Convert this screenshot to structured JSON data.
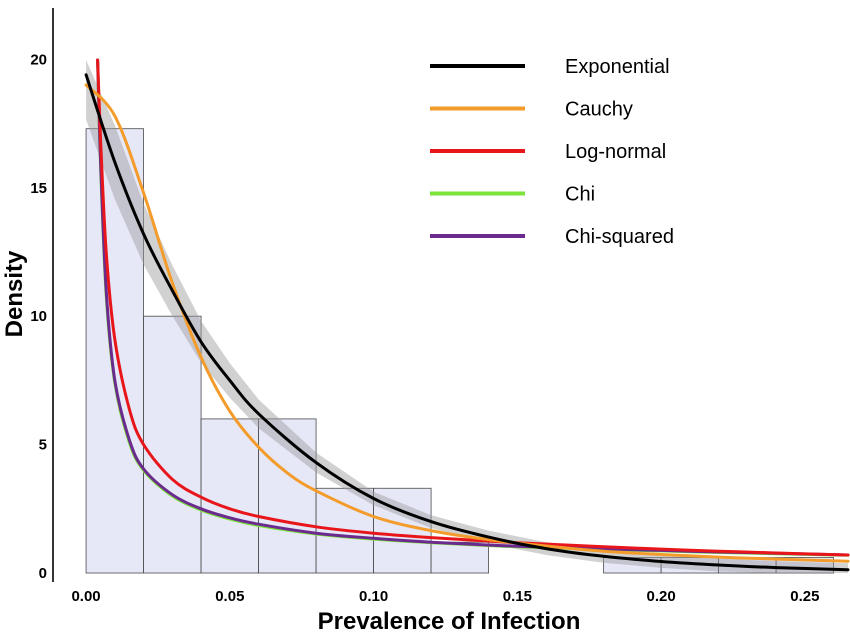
{
  "chart_data": {
    "type": "bar",
    "xlabel": "Prevalence of Infection",
    "ylabel": "Density",
    "xlim": [
      -0.0115,
      0.265
    ],
    "ylim": [
      -0.35,
      22.0
    ],
    "xticks": [
      0.0,
      0.05,
      0.1,
      0.15,
      0.2,
      0.25
    ],
    "xtick_labels": [
      "0.00",
      "0.05",
      "0.10",
      "0.15",
      "0.20",
      "0.25"
    ],
    "yticks": [
      0,
      5,
      10,
      15,
      20
    ],
    "ytick_labels": [
      "0",
      "5",
      "10",
      "15",
      "20"
    ],
    "grid": false,
    "legend_position": "top-right",
    "histogram": {
      "bin_edges": [
        0.0,
        0.02,
        0.04,
        0.06,
        0.08,
        0.1,
        0.12,
        0.14,
        0.16,
        0.18,
        0.2,
        0.22,
        0.24,
        0.26
      ],
      "densities": [
        17.3,
        10.0,
        6.0,
        6.0,
        3.3,
        3.3,
        1.2,
        0.0,
        0.0,
        0.6,
        0.6,
        0.6,
        0.6
      ],
      "fill": "#e6e8f7",
      "stroke": "#4a4a4a"
    },
    "confidence_band": {
      "fill": "#9a9a9a"
    },
    "series": [
      {
        "name": "Exponential",
        "color": "#000000",
        "x": [
          0.0,
          0.01,
          0.02,
          0.03,
          0.04,
          0.05,
          0.06,
          0.08,
          0.1,
          0.12,
          0.14,
          0.16,
          0.18,
          0.2,
          0.22,
          0.24,
          0.265
        ],
        "y": [
          19.4,
          16.0,
          13.2,
          11.0,
          9.0,
          7.5,
          6.2,
          4.3,
          2.9,
          2.0,
          1.4,
          0.95,
          0.65,
          0.45,
          0.31,
          0.21,
          0.13
        ]
      },
      {
        "name": "Cauchy",
        "color": "#f39c2b",
        "x": [
          0.0,
          0.01,
          0.02,
          0.03,
          0.04,
          0.05,
          0.06,
          0.07,
          0.08,
          0.1,
          0.12,
          0.14,
          0.16,
          0.18,
          0.2,
          0.22,
          0.24,
          0.265
        ],
        "y": [
          19.0,
          17.8,
          14.8,
          11.3,
          8.4,
          6.3,
          4.9,
          3.9,
          3.2,
          2.2,
          1.65,
          1.3,
          1.05,
          0.85,
          0.72,
          0.62,
          0.54,
          0.46
        ]
      },
      {
        "name": "Log-normal",
        "color": "#e8161b",
        "x": [
          0.004,
          0.005,
          0.007,
          0.01,
          0.015,
          0.02,
          0.03,
          0.04,
          0.05,
          0.06,
          0.08,
          0.1,
          0.12,
          0.15,
          0.18,
          0.2,
          0.22,
          0.24,
          0.265
        ],
        "y": [
          20.5,
          17.0,
          12.5,
          9.1,
          6.4,
          5.0,
          3.65,
          2.95,
          2.5,
          2.2,
          1.8,
          1.55,
          1.38,
          1.18,
          1.02,
          0.93,
          0.85,
          0.78,
          0.7
        ]
      },
      {
        "name": "Chi",
        "color": "#7ce33a",
        "x": [
          0.004,
          0.005,
          0.007,
          0.01,
          0.015,
          0.02,
          0.03,
          0.04,
          0.05,
          0.06,
          0.08,
          0.1,
          0.12,
          0.15,
          0.18,
          0.2,
          0.22,
          0.24,
          0.265
        ],
        "y": [
          20.5,
          16.0,
          10.8,
          7.4,
          5.1,
          4.0,
          3.0,
          2.45,
          2.1,
          1.85,
          1.52,
          1.32,
          1.18,
          1.02,
          0.92,
          0.86,
          0.8,
          0.75,
          0.69
        ]
      },
      {
        "name": "Chi-squared",
        "color": "#6a2a8e",
        "x": [
          0.004,
          0.005,
          0.007,
          0.01,
          0.015,
          0.02,
          0.03,
          0.04,
          0.05,
          0.06,
          0.08,
          0.1,
          0.12,
          0.15,
          0.18,
          0.2,
          0.22,
          0.24,
          0.265
        ],
        "y": [
          20.5,
          16.2,
          11.0,
          7.5,
          5.2,
          4.05,
          3.05,
          2.5,
          2.15,
          1.9,
          1.55,
          1.35,
          1.2,
          1.04,
          0.94,
          0.88,
          0.82,
          0.77,
          0.7
        ]
      }
    ]
  }
}
